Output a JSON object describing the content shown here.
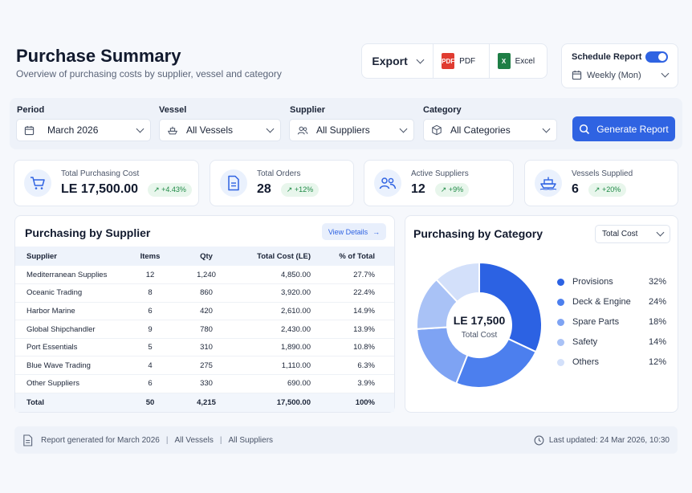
{
  "header": {
    "title": "Purchase Summary",
    "subtitle": "Overview of purchasing costs by supplier, vessel and category"
  },
  "export": {
    "label": "Export",
    "pdf_label": "PDF",
    "excel_label": "Excel",
    "pdf_icon_text": "PDF",
    "excel_icon_text": "X"
  },
  "schedule": {
    "label": "Schedule Report",
    "enabled": true,
    "frequency": "Weekly (Mon)"
  },
  "filters": {
    "period_label": "Period",
    "period_value": "March 2026",
    "vessel_label": "Vessel",
    "vessel_value": "All Vessels",
    "supplier_label": "Supplier",
    "supplier_value": "All Suppliers",
    "category_label": "Category",
    "category_value": "All Categories",
    "generate_label": "Generate Report"
  },
  "kpis": [
    {
      "label": "Total Purchasing Cost",
      "value": "LE 17,500.00",
      "change": "+4.43%",
      "icon": "cart-icon"
    },
    {
      "label": "Total Orders",
      "value": "28",
      "change": "+12%",
      "icon": "document-icon"
    },
    {
      "label": "Active Suppliers",
      "value": "12",
      "change": "+9%",
      "icon": "people-icon"
    },
    {
      "label": "Vessels Supplied",
      "value": "6",
      "change": "+20%",
      "icon": "ship-icon"
    }
  ],
  "supplier_panel": {
    "title": "Purchasing by Supplier",
    "view_details": "View Details",
    "columns": [
      "Supplier",
      "Items",
      "Qty",
      "Total Cost (LE)",
      "% of Total"
    ],
    "rows": [
      [
        "Mediterranean Supplies",
        "12",
        "1,240",
        "4,850.00",
        "27.7%"
      ],
      [
        "Oceanic Trading",
        "8",
        "860",
        "3,920.00",
        "22.4%"
      ],
      [
        "Harbor Marine",
        "6",
        "420",
        "2,610.00",
        "14.9%"
      ],
      [
        "Global Shipchandler",
        "9",
        "780",
        "2,430.00",
        "13.9%"
      ],
      [
        "Port Essentials",
        "5",
        "310",
        "1,890.00",
        "10.8%"
      ],
      [
        "Blue Wave Trading",
        "4",
        "275",
        "1,110.00",
        "6.3%"
      ],
      [
        "Other Suppliers",
        "6",
        "330",
        "690.00",
        "3.9%"
      ]
    ],
    "total": [
      "Total",
      "50",
      "4,215",
      "17,500.00",
      "100%"
    ]
  },
  "category_panel": {
    "title": "Purchasing by Category",
    "metric_select": "Total Cost",
    "center_value": "LE 17,500",
    "center_label": "Total Cost",
    "categories": [
      {
        "name": "Provisions",
        "pct_label": "32%",
        "value": 32,
        "color": "#2c62e3"
      },
      {
        "name": "Deck & Engine",
        "pct_label": "24%",
        "value": 24,
        "color": "#4c7fee"
      },
      {
        "name": "Spare Parts",
        "pct_label": "18%",
        "value": 18,
        "color": "#7ea3f3"
      },
      {
        "name": "Safety",
        "pct_label": "14%",
        "value": 14,
        "color": "#a9c2f6"
      },
      {
        "name": "Others",
        "pct_label": "12%",
        "value": 12,
        "color": "#d3e0fa"
      }
    ]
  },
  "footer": {
    "generated": "Report generated for March 2026",
    "vessels": "All Vessels",
    "suppliers": "All Suppliers",
    "updated": "Last updated: 24 Mar 2026, 10:30"
  },
  "colors": {
    "accent": "#2f63e2",
    "positive": "#1f8a46"
  }
}
